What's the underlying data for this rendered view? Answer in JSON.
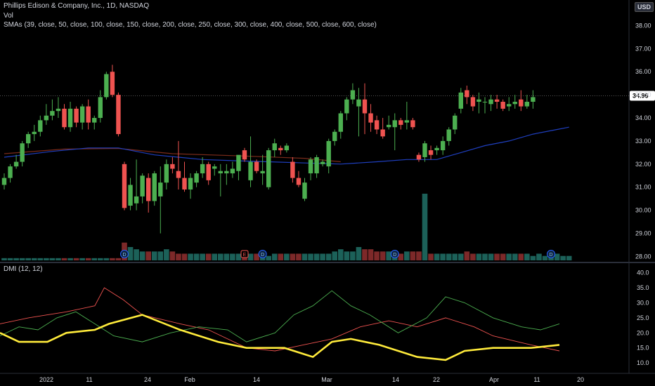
{
  "header": {
    "title": "Phillips Edison & Company, Inc., 1D, NASDAQ",
    "vol_label": "Vol",
    "sma_label": "SMAs (39, close, 50, close, 100, close, 150, close, 200, close, 250, close, 300, close, 400, close, 500, close, 600, close)",
    "currency": "USD"
  },
  "indicator": {
    "label": "DMI (12, 12)"
  },
  "colors": {
    "up": "#26a69a",
    "up_candle": "#4caf50",
    "down": "#ef5350",
    "sma_blue": "#1f3fbf",
    "sma_red": "#7a2b1a",
    "adx": "#ffeb3b",
    "plus_di": "#4caf50",
    "minus_di": "#ef5350",
    "last_price_bg": "#ffffff"
  },
  "chart_data": [
    {
      "type": "candlestick",
      "title": "Phillips Edison & Company, Inc., 1D, NASDAQ",
      "ylim": [
        27.8,
        38.5
      ],
      "y_ticks": [
        "38.00",
        "37.00",
        "36.00",
        "35.00",
        "34.00",
        "33.00",
        "32.00",
        "31.00",
        "30.00",
        "29.00",
        "28.00"
      ],
      "x_ticks": [
        "2022",
        "11",
        "24",
        "Feb",
        "14",
        "Mar",
        "14",
        "22",
        "Apr",
        "11",
        "20"
      ],
      "last_price": "34.96",
      "candles": [
        {
          "o": 31.1,
          "h": 31.6,
          "l": 30.9,
          "c": 31.4
        },
        {
          "o": 31.4,
          "h": 32.0,
          "l": 31.2,
          "c": 31.9
        },
        {
          "o": 31.9,
          "h": 32.4,
          "l": 31.8,
          "c": 32.1
        },
        {
          "o": 32.1,
          "h": 33.0,
          "l": 31.9,
          "c": 32.9
        },
        {
          "o": 32.9,
          "h": 33.4,
          "l": 32.7,
          "c": 33.3
        },
        {
          "o": 33.3,
          "h": 33.7,
          "l": 33.0,
          "c": 33.4
        },
        {
          "o": 33.4,
          "h": 34.1,
          "l": 33.2,
          "c": 33.9
        },
        {
          "o": 33.9,
          "h": 34.6,
          "l": 33.7,
          "c": 34.1
        },
        {
          "o": 34.1,
          "h": 34.8,
          "l": 33.9,
          "c": 34.3
        },
        {
          "o": 34.3,
          "h": 34.9,
          "l": 34.0,
          "c": 34.4
        },
        {
          "o": 34.4,
          "h": 34.6,
          "l": 33.5,
          "c": 33.6
        },
        {
          "o": 33.6,
          "h": 34.7,
          "l": 33.4,
          "c": 34.4
        },
        {
          "o": 34.4,
          "h": 34.5,
          "l": 33.6,
          "c": 33.8
        },
        {
          "o": 33.8,
          "h": 34.6,
          "l": 33.5,
          "c": 34.5
        },
        {
          "o": 34.5,
          "h": 34.8,
          "l": 33.5,
          "c": 33.8
        },
        {
          "o": 33.8,
          "h": 34.1,
          "l": 33.5,
          "c": 34.0
        },
        {
          "o": 34.0,
          "h": 35.2,
          "l": 33.8,
          "c": 34.9
        },
        {
          "o": 34.9,
          "h": 36.0,
          "l": 34.8,
          "c": 35.9
        },
        {
          "o": 36.0,
          "h": 36.3,
          "l": 34.9,
          "c": 35.0
        },
        {
          "o": 35.0,
          "h": 35.1,
          "l": 33.2,
          "c": 33.3
        },
        {
          "o": 32.0,
          "h": 32.1,
          "l": 30.0,
          "c": 30.1
        },
        {
          "o": 30.2,
          "h": 31.4,
          "l": 30.0,
          "c": 31.1
        },
        {
          "o": 30.3,
          "h": 32.2,
          "l": 30.0,
          "c": 30.6
        },
        {
          "o": 30.6,
          "h": 31.6,
          "l": 30.3,
          "c": 31.5
        },
        {
          "o": 31.4,
          "h": 31.6,
          "l": 29.9,
          "c": 30.4
        },
        {
          "o": 30.4,
          "h": 31.7,
          "l": 30.2,
          "c": 31.6
        },
        {
          "o": 30.6,
          "h": 31.9,
          "l": 29.0,
          "c": 31.2
        },
        {
          "o": 31.2,
          "h": 32.2,
          "l": 30.9,
          "c": 32.0
        },
        {
          "o": 32.0,
          "h": 32.3,
          "l": 31.6,
          "c": 31.8
        },
        {
          "o": 31.7,
          "h": 33.0,
          "l": 30.9,
          "c": 31.4
        },
        {
          "o": 31.4,
          "h": 32.1,
          "l": 30.8,
          "c": 30.9
        },
        {
          "o": 30.9,
          "h": 31.6,
          "l": 30.5,
          "c": 31.4
        },
        {
          "o": 31.2,
          "h": 31.7,
          "l": 31.0,
          "c": 31.6
        },
        {
          "o": 31.6,
          "h": 32.3,
          "l": 31.4,
          "c": 32.0
        },
        {
          "o": 32.0,
          "h": 32.1,
          "l": 31.1,
          "c": 31.3
        },
        {
          "o": 31.8,
          "h": 32.0,
          "l": 31.5,
          "c": 31.9
        },
        {
          "o": 31.6,
          "h": 32.0,
          "l": 30.6,
          "c": 31.7
        },
        {
          "o": 31.6,
          "h": 32.0,
          "l": 31.1,
          "c": 31.7
        },
        {
          "o": 31.6,
          "h": 32.1,
          "l": 31.4,
          "c": 31.8
        },
        {
          "o": 31.7,
          "h": 32.3,
          "l": 31.3,
          "c": 32.4
        },
        {
          "o": 32.6,
          "h": 32.7,
          "l": 32.1,
          "c": 32.2
        },
        {
          "o": 31.3,
          "h": 33.2,
          "l": 31.0,
          "c": 32.1
        },
        {
          "o": 32.1,
          "h": 32.2,
          "l": 31.6,
          "c": 31.7
        },
        {
          "o": 31.6,
          "h": 32.4,
          "l": 31.1,
          "c": 31.7
        },
        {
          "o": 31.0,
          "h": 32.7,
          "l": 30.9,
          "c": 32.6
        },
        {
          "o": 32.6,
          "h": 33.1,
          "l": 32.3,
          "c": 32.9
        },
        {
          "o": 32.7,
          "h": 32.8,
          "l": 32.4,
          "c": 32.6
        },
        {
          "o": 32.6,
          "h": 32.9,
          "l": 32.5,
          "c": 32.8
        },
        {
          "o": 32.1,
          "h": 32.3,
          "l": 31.2,
          "c": 31.4
        },
        {
          "o": 31.4,
          "h": 31.7,
          "l": 31.0,
          "c": 31.1
        },
        {
          "o": 30.5,
          "h": 31.4,
          "l": 30.4,
          "c": 31.2
        },
        {
          "o": 31.6,
          "h": 32.3,
          "l": 31.3,
          "c": 32.2
        },
        {
          "o": 31.6,
          "h": 32.4,
          "l": 31.4,
          "c": 32.3
        },
        {
          "o": 32.0,
          "h": 32.2,
          "l": 31.9,
          "c": 32.1
        },
        {
          "o": 31.9,
          "h": 33.1,
          "l": 31.6,
          "c": 33.0
        },
        {
          "o": 33.0,
          "h": 33.5,
          "l": 32.8,
          "c": 33.4
        },
        {
          "o": 33.4,
          "h": 34.3,
          "l": 33.1,
          "c": 34.2
        },
        {
          "o": 34.2,
          "h": 34.9,
          "l": 33.9,
          "c": 34.8
        },
        {
          "o": 34.8,
          "h": 35.5,
          "l": 34.6,
          "c": 35.2
        },
        {
          "o": 34.5,
          "h": 35.3,
          "l": 33.2,
          "c": 34.8
        },
        {
          "o": 34.8,
          "h": 35.5,
          "l": 33.3,
          "c": 34.2
        },
        {
          "o": 34.2,
          "h": 34.6,
          "l": 33.4,
          "c": 33.8
        },
        {
          "o": 33.9,
          "h": 34.1,
          "l": 33.3,
          "c": 33.5
        },
        {
          "o": 33.5,
          "h": 34.0,
          "l": 33.1,
          "c": 33.2
        },
        {
          "o": 33.6,
          "h": 34.1,
          "l": 33.5,
          "c": 33.7
        },
        {
          "o": 33.6,
          "h": 34.2,
          "l": 32.6,
          "c": 33.9
        },
        {
          "o": 33.9,
          "h": 34.0,
          "l": 33.5,
          "c": 33.7
        },
        {
          "o": 33.8,
          "h": 34.7,
          "l": 33.5,
          "c": 33.9
        },
        {
          "o": 33.9,
          "h": 34.0,
          "l": 33.5,
          "c": 33.6
        },
        {
          "o": 32.4,
          "h": 32.5,
          "l": 32.1,
          "c": 32.2
        },
        {
          "o": 32.3,
          "h": 33.0,
          "l": 32.1,
          "c": 32.9
        },
        {
          "o": 32.6,
          "h": 32.8,
          "l": 32.2,
          "c": 32.4
        },
        {
          "o": 32.6,
          "h": 32.8,
          "l": 32.4,
          "c": 32.7
        },
        {
          "o": 32.6,
          "h": 33.2,
          "l": 32.4,
          "c": 33.0
        },
        {
          "o": 33.0,
          "h": 33.6,
          "l": 32.8,
          "c": 33.5
        },
        {
          "o": 33.5,
          "h": 34.2,
          "l": 33.3,
          "c": 34.1
        },
        {
          "o": 34.4,
          "h": 35.3,
          "l": 34.2,
          "c": 35.1
        },
        {
          "o": 35.2,
          "h": 35.4,
          "l": 34.6,
          "c": 34.9
        },
        {
          "o": 34.9,
          "h": 35.0,
          "l": 34.3,
          "c": 34.5
        },
        {
          "o": 34.7,
          "h": 35.1,
          "l": 34.2,
          "c": 34.8
        },
        {
          "o": 34.7,
          "h": 34.9,
          "l": 34.2,
          "c": 34.7
        },
        {
          "o": 34.6,
          "h": 35.0,
          "l": 34.3,
          "c": 34.8
        },
        {
          "o": 34.8,
          "h": 35.0,
          "l": 34.4,
          "c": 34.7
        },
        {
          "o": 34.7,
          "h": 34.8,
          "l": 34.3,
          "c": 34.4
        },
        {
          "o": 34.5,
          "h": 34.9,
          "l": 34.3,
          "c": 34.6
        },
        {
          "o": 34.6,
          "h": 35.0,
          "l": 34.4,
          "c": 34.7
        },
        {
          "o": 34.8,
          "h": 35.2,
          "l": 34.3,
          "c": 34.5
        },
        {
          "o": 34.5,
          "h": 35.0,
          "l": 34.4,
          "c": 34.7
        },
        {
          "o": 34.7,
          "h": 35.2,
          "l": 34.4,
          "c": 34.9
        }
      ],
      "sma_blue": [
        [
          0,
          32.3
        ],
        [
          8,
          32.55
        ],
        [
          14,
          32.7
        ],
        [
          19,
          32.7
        ],
        [
          25,
          32.4
        ],
        [
          33,
          32.2
        ],
        [
          38,
          32.15
        ],
        [
          44,
          32.1
        ],
        [
          50,
          32.05
        ],
        [
          56,
          32.0
        ],
        [
          62,
          32.1
        ],
        [
          67,
          32.2
        ],
        [
          72,
          32.2
        ],
        [
          76,
          32.5
        ],
        [
          80,
          32.8
        ],
        [
          84,
          33.0
        ],
        [
          88,
          33.3
        ],
        [
          92,
          33.5
        ],
        [
          94,
          33.6
        ]
      ],
      "sma_red": [
        [
          0,
          32.45
        ],
        [
          10,
          32.65
        ],
        [
          19,
          32.68
        ],
        [
          28,
          32.45
        ],
        [
          40,
          32.35
        ],
        [
          50,
          32.25
        ],
        [
          56,
          32.1
        ]
      ]
    },
    {
      "type": "bar",
      "title": "Vol",
      "values": [
        1,
        1,
        1,
        1,
        1,
        1,
        1,
        1,
        1,
        1,
        1,
        1,
        1,
        1,
        1,
        1,
        1,
        1,
        1,
        1,
        8,
        6,
        5,
        4,
        4,
        4,
        4,
        5,
        4,
        3,
        3,
        3,
        3,
        3,
        3,
        3,
        3,
        3,
        3,
        3,
        3,
        3,
        3,
        3,
        2,
        3,
        3,
        3,
        3,
        3,
        3,
        3,
        3,
        3,
        3,
        4,
        5,
        4,
        4,
        6,
        5,
        5,
        4,
        4,
        4,
        3,
        3,
        4,
        4,
        4,
        3,
        3,
        3,
        3,
        3,
        3,
        3,
        4,
        3,
        3,
        3,
        3,
        3,
        3,
        3,
        3,
        3,
        3,
        2,
        3,
        2,
        2,
        3,
        2,
        2
      ],
      "spike_index": 70,
      "spike_value": 30,
      "markers": [
        {
          "index": 20,
          "label": "D"
        },
        {
          "index": 40,
          "label": "E"
        },
        {
          "index": 43,
          "label": "D"
        },
        {
          "index": 65,
          "label": "D"
        },
        {
          "index": 91,
          "label": "D"
        }
      ]
    },
    {
      "type": "line",
      "title": "DMI (12, 12)",
      "ylim": [
        7,
        42
      ],
      "y_ticks": [
        "40.0",
        "35.0",
        "30.0",
        "25.0",
        "20.0",
        "15.0",
        "10.0"
      ],
      "series": [
        {
          "values": [
            [
              0,
              20
            ],
            [
              4,
              17
            ],
            [
              10,
              17
            ],
            [
              14,
              20
            ],
            [
              20,
              21
            ],
            [
              23,
              23
            ],
            [
              30,
              26
            ],
            [
              38,
              21
            ],
            [
              46,
              17
            ],
            [
              52,
              15
            ],
            [
              60,
              15
            ],
            [
              66,
              12
            ],
            [
              70,
              17
            ],
            [
              74,
              18
            ],
            [
              80,
              16
            ],
            [
              88,
              12
            ],
            [
              94,
              11
            ],
            [
              98,
              14
            ],
            [
              104,
              15
            ],
            [
              112,
              15
            ],
            [
              118,
              16
            ]
          ]
        },
        {
          "values": [
            [
              0,
              23
            ],
            [
              6,
              25
            ],
            [
              10,
              26
            ],
            [
              14,
              27
            ],
            [
              20,
              29
            ],
            [
              22,
              35
            ],
            [
              26,
              31
            ],
            [
              30,
              26
            ],
            [
              38,
              23
            ],
            [
              44,
              21
            ],
            [
              52,
              15
            ],
            [
              58,
              14
            ],
            [
              64,
              16
            ],
            [
              70,
              18
            ],
            [
              76,
              22
            ],
            [
              82,
              24
            ],
            [
              88,
              22
            ],
            [
              94,
              25
            ],
            [
              100,
              22
            ],
            [
              104,
              19
            ],
            [
              112,
              16
            ],
            [
              118,
              14
            ]
          ]
        },
        {
          "values": [
            [
              0,
              19
            ],
            [
              4,
              22
            ],
            [
              8,
              21
            ],
            [
              12,
              25
            ],
            [
              16,
              27
            ],
            [
              20,
              23
            ],
            [
              24,
              19
            ],
            [
              30,
              17
            ],
            [
              36,
              20
            ],
            [
              42,
              22
            ],
            [
              48,
              21
            ],
            [
              52,
              17
            ],
            [
              58,
              20
            ],
            [
              62,
              26
            ],
            [
              66,
              29
            ],
            [
              70,
              34
            ],
            [
              74,
              29
            ],
            [
              78,
              26
            ],
            [
              84,
              20
            ],
            [
              90,
              25
            ],
            [
              94,
              32
            ],
            [
              98,
              30
            ],
            [
              104,
              25
            ],
            [
              110,
              22
            ],
            [
              114,
              21
            ],
            [
              118,
              23
            ]
          ]
        }
      ]
    }
  ]
}
